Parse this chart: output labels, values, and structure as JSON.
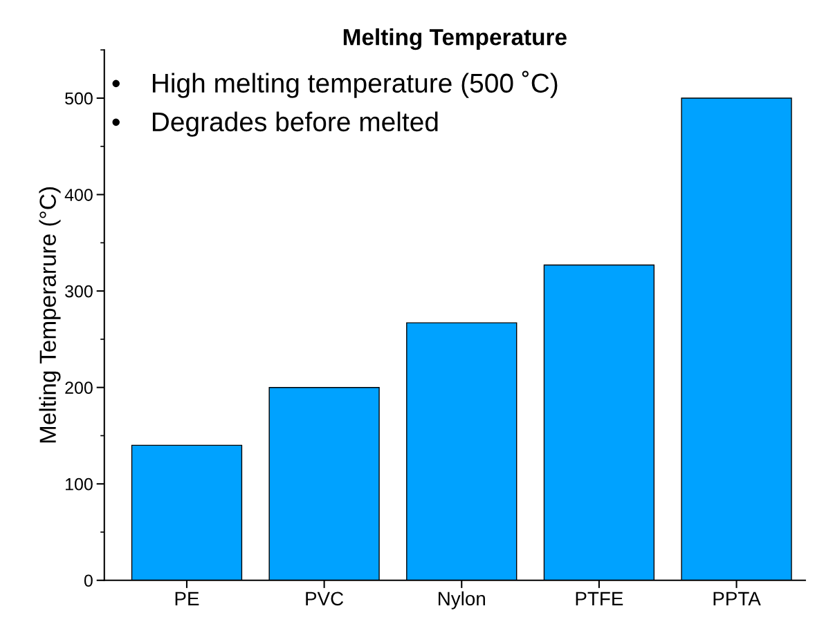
{
  "chart_data": {
    "type": "bar",
    "title": "Melting Temperature",
    "ylabel": "Melting Temperarure (°C)",
    "categories": [
      "PE",
      "PVC",
      "Nylon",
      "PTFE",
      "PPTA"
    ],
    "values": [
      140,
      200,
      267,
      327,
      500
    ],
    "color": "#00a2ff",
    "ylim": [
      0,
      550
    ],
    "yticks": [
      0,
      100,
      200,
      300,
      400,
      500
    ],
    "grid": false,
    "annotations": [
      "•    High melting temperature (500 ˚C)",
      "•    Degrades before melted"
    ]
  }
}
